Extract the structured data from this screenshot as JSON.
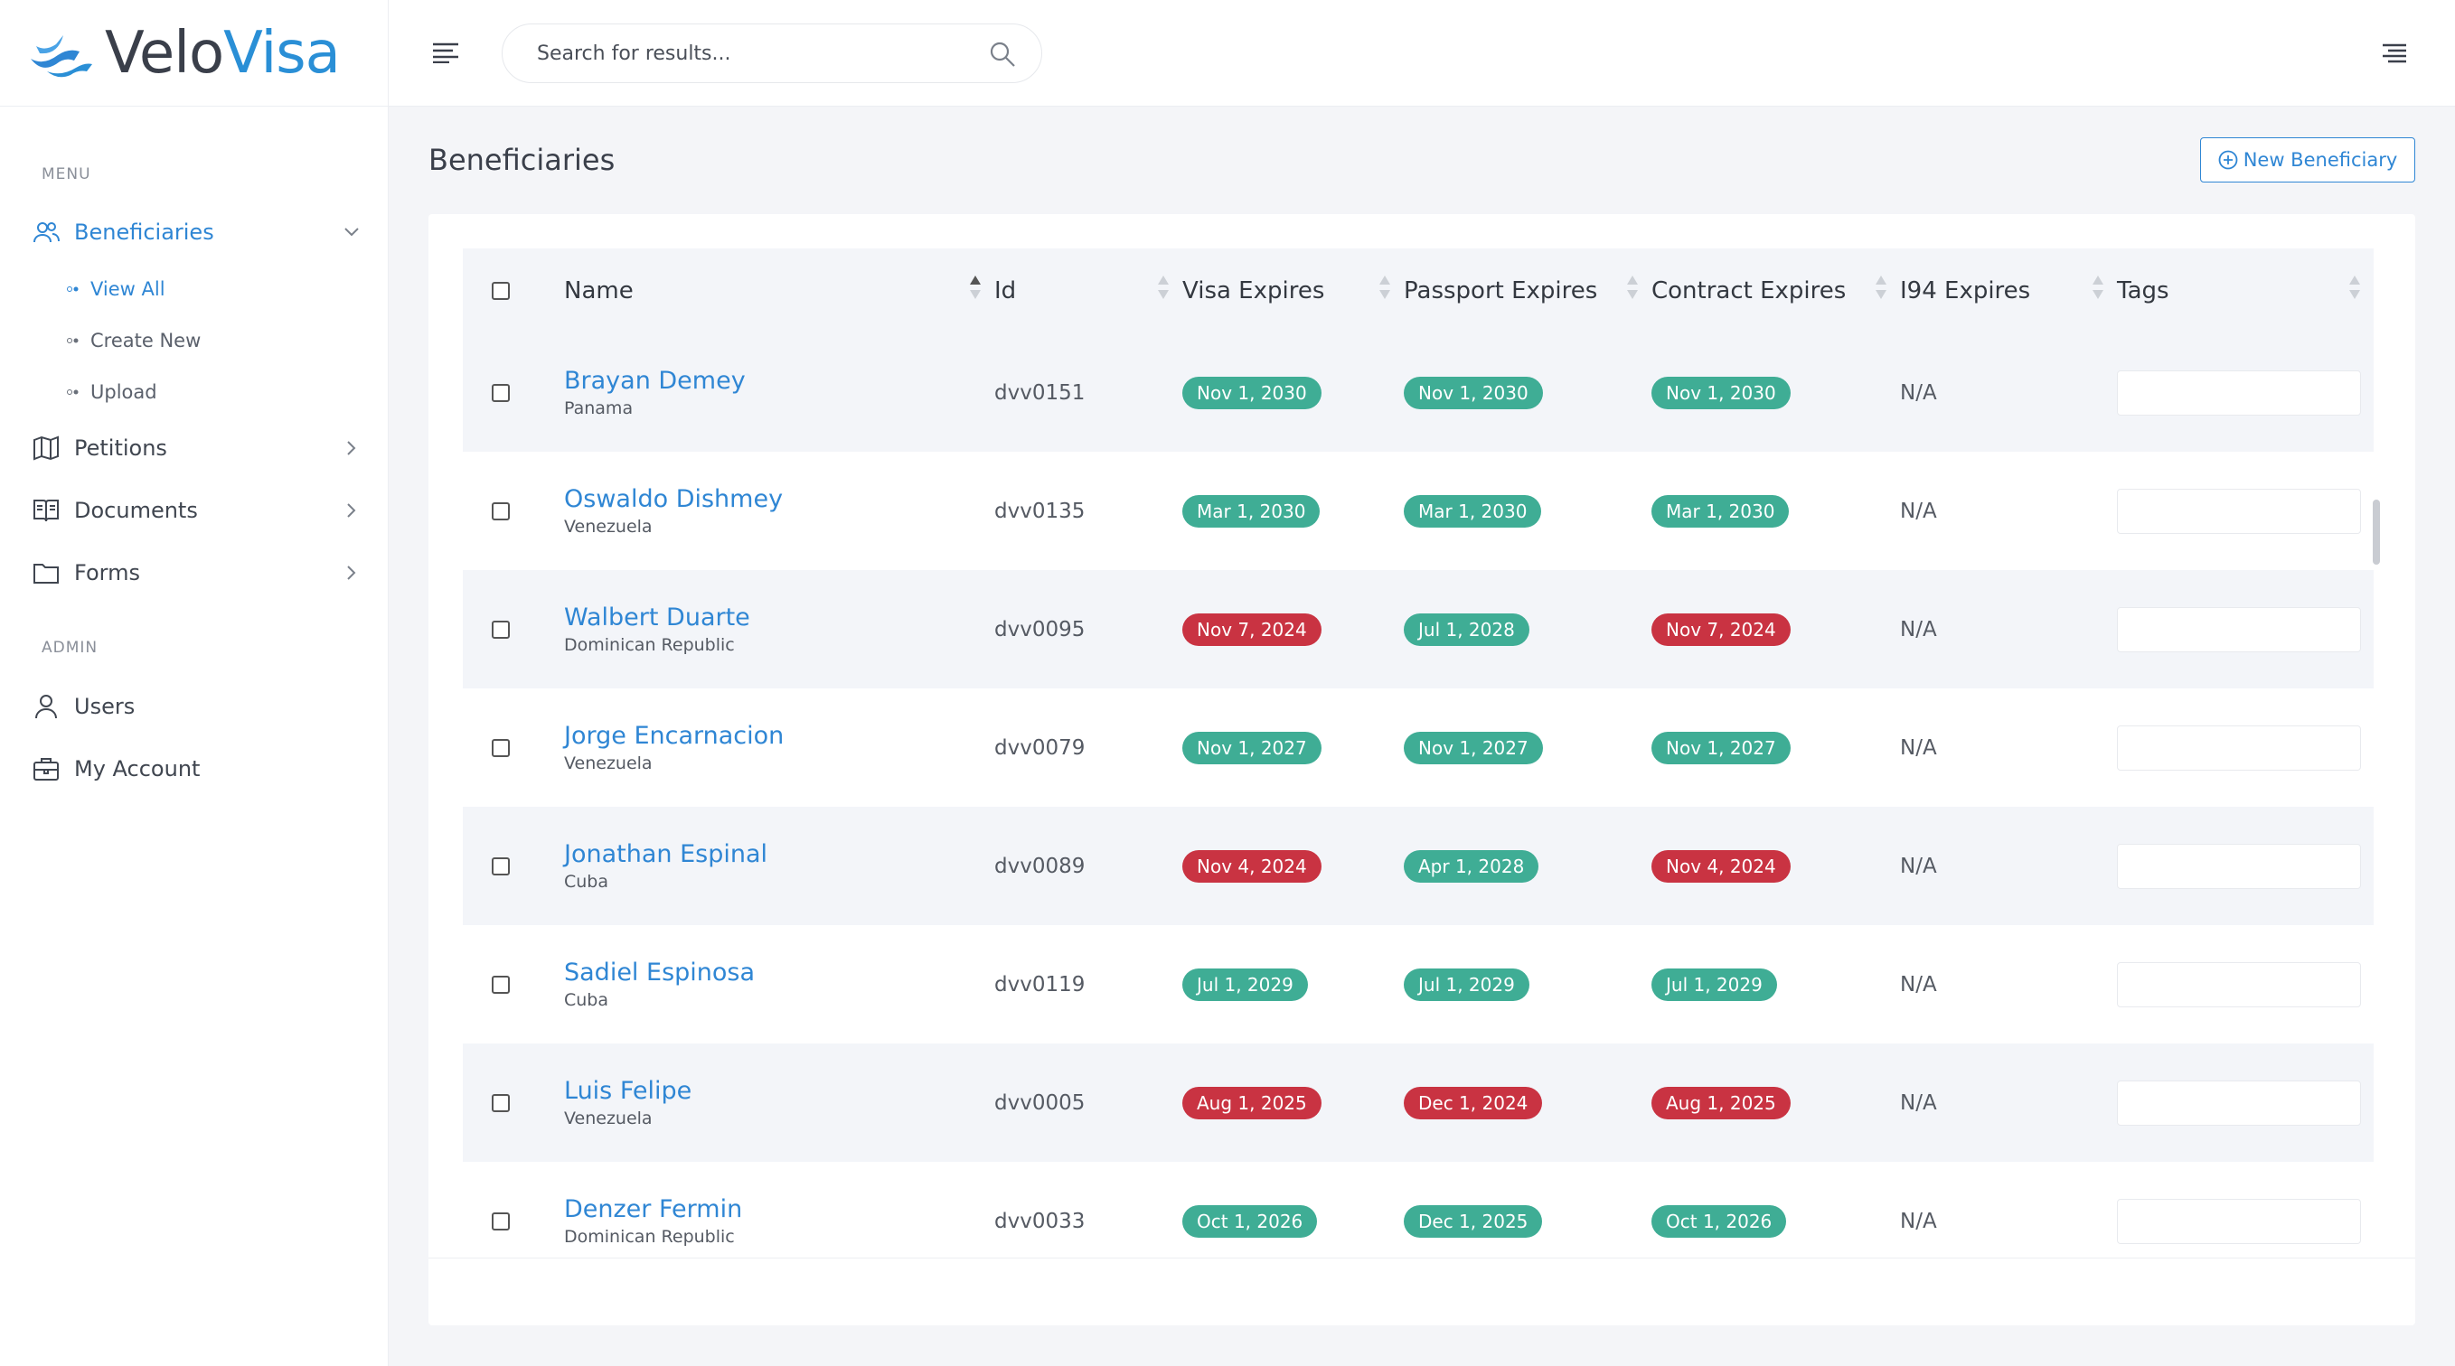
{
  "brand": {
    "part1": "Velo",
    "part2": "Visa"
  },
  "search": {
    "placeholder": "Search for results..."
  },
  "sidebar": {
    "menu_label": "MENU",
    "admin_label": "ADMIN",
    "beneficiaries": "Beneficiaries",
    "sub_items": [
      "View All",
      "Create New",
      "Upload"
    ],
    "petitions": "Petitions",
    "documents": "Documents",
    "forms": "Forms",
    "users": "Users",
    "my_account": "My Account"
  },
  "page": {
    "title": "Beneficiaries",
    "new_button": "New Beneficiary"
  },
  "table": {
    "headers": [
      "Name",
      "Id",
      "Visa Expires",
      "Passport Expires",
      "Contract Expires",
      "I94 Expires",
      "Tags"
    ],
    "rows": [
      {
        "name": "Brayan Demey",
        "country": "Panama",
        "id": "dvv0151",
        "visa": "Nov 1, 2030",
        "passport": "Nov 1, 2030",
        "contract": "Nov 1, 2030",
        "i94": "N/A",
        "visa_status": "green",
        "passport_status": "green",
        "contract_status": "green"
      },
      {
        "name": "Oswaldo Dishmey",
        "country": "Venezuela",
        "id": "dvv0135",
        "visa": "Mar 1, 2030",
        "passport": "Mar 1, 2030",
        "contract": "Mar 1, 2030",
        "i94": "N/A",
        "visa_status": "green",
        "passport_status": "green",
        "contract_status": "green"
      },
      {
        "name": "Walbert Duarte",
        "country": "Dominican Republic",
        "id": "dvv0095",
        "visa": "Nov 7, 2024",
        "passport": "Jul 1, 2028",
        "contract": "Nov 7, 2024",
        "i94": "N/A",
        "visa_status": "red",
        "passport_status": "green",
        "contract_status": "red"
      },
      {
        "name": "Jorge Encarnacion",
        "country": "Venezuela",
        "id": "dvv0079",
        "visa": "Nov 1, 2027",
        "passport": "Nov 1, 2027",
        "contract": "Nov 1, 2027",
        "i94": "N/A",
        "visa_status": "green",
        "passport_status": "green",
        "contract_status": "green"
      },
      {
        "name": "Jonathan Espinal",
        "country": "Cuba",
        "id": "dvv0089",
        "visa": "Nov 4, 2024",
        "passport": "Apr 1, 2028",
        "contract": "Nov 4, 2024",
        "i94": "N/A",
        "visa_status": "red",
        "passport_status": "green",
        "contract_status": "red"
      },
      {
        "name": "Sadiel Espinosa",
        "country": "Cuba",
        "id": "dvv0119",
        "visa": "Jul 1, 2029",
        "passport": "Jul 1, 2029",
        "contract": "Jul 1, 2029",
        "i94": "N/A",
        "visa_status": "green",
        "passport_status": "green",
        "contract_status": "green"
      },
      {
        "name": "Luis Felipe",
        "country": "Venezuela",
        "id": "dvv0005",
        "visa": "Aug 1, 2025",
        "passport": "Dec 1, 2024",
        "contract": "Aug 1, 2025",
        "i94": "N/A",
        "visa_status": "red",
        "passport_status": "red",
        "contract_status": "red"
      },
      {
        "name": "Denzer Fermin",
        "country": "Dominican Republic",
        "id": "dvv0033",
        "visa": "Oct 1, 2026",
        "passport": "Dec 1, 2025",
        "contract": "Oct 1, 2026",
        "i94": "N/A",
        "visa_status": "green",
        "passport_status": "green",
        "contract_status": "green"
      }
    ]
  },
  "colors": {
    "accent": "#2f86d4",
    "badge_green": "#3fad95",
    "badge_red": "#c93342"
  }
}
